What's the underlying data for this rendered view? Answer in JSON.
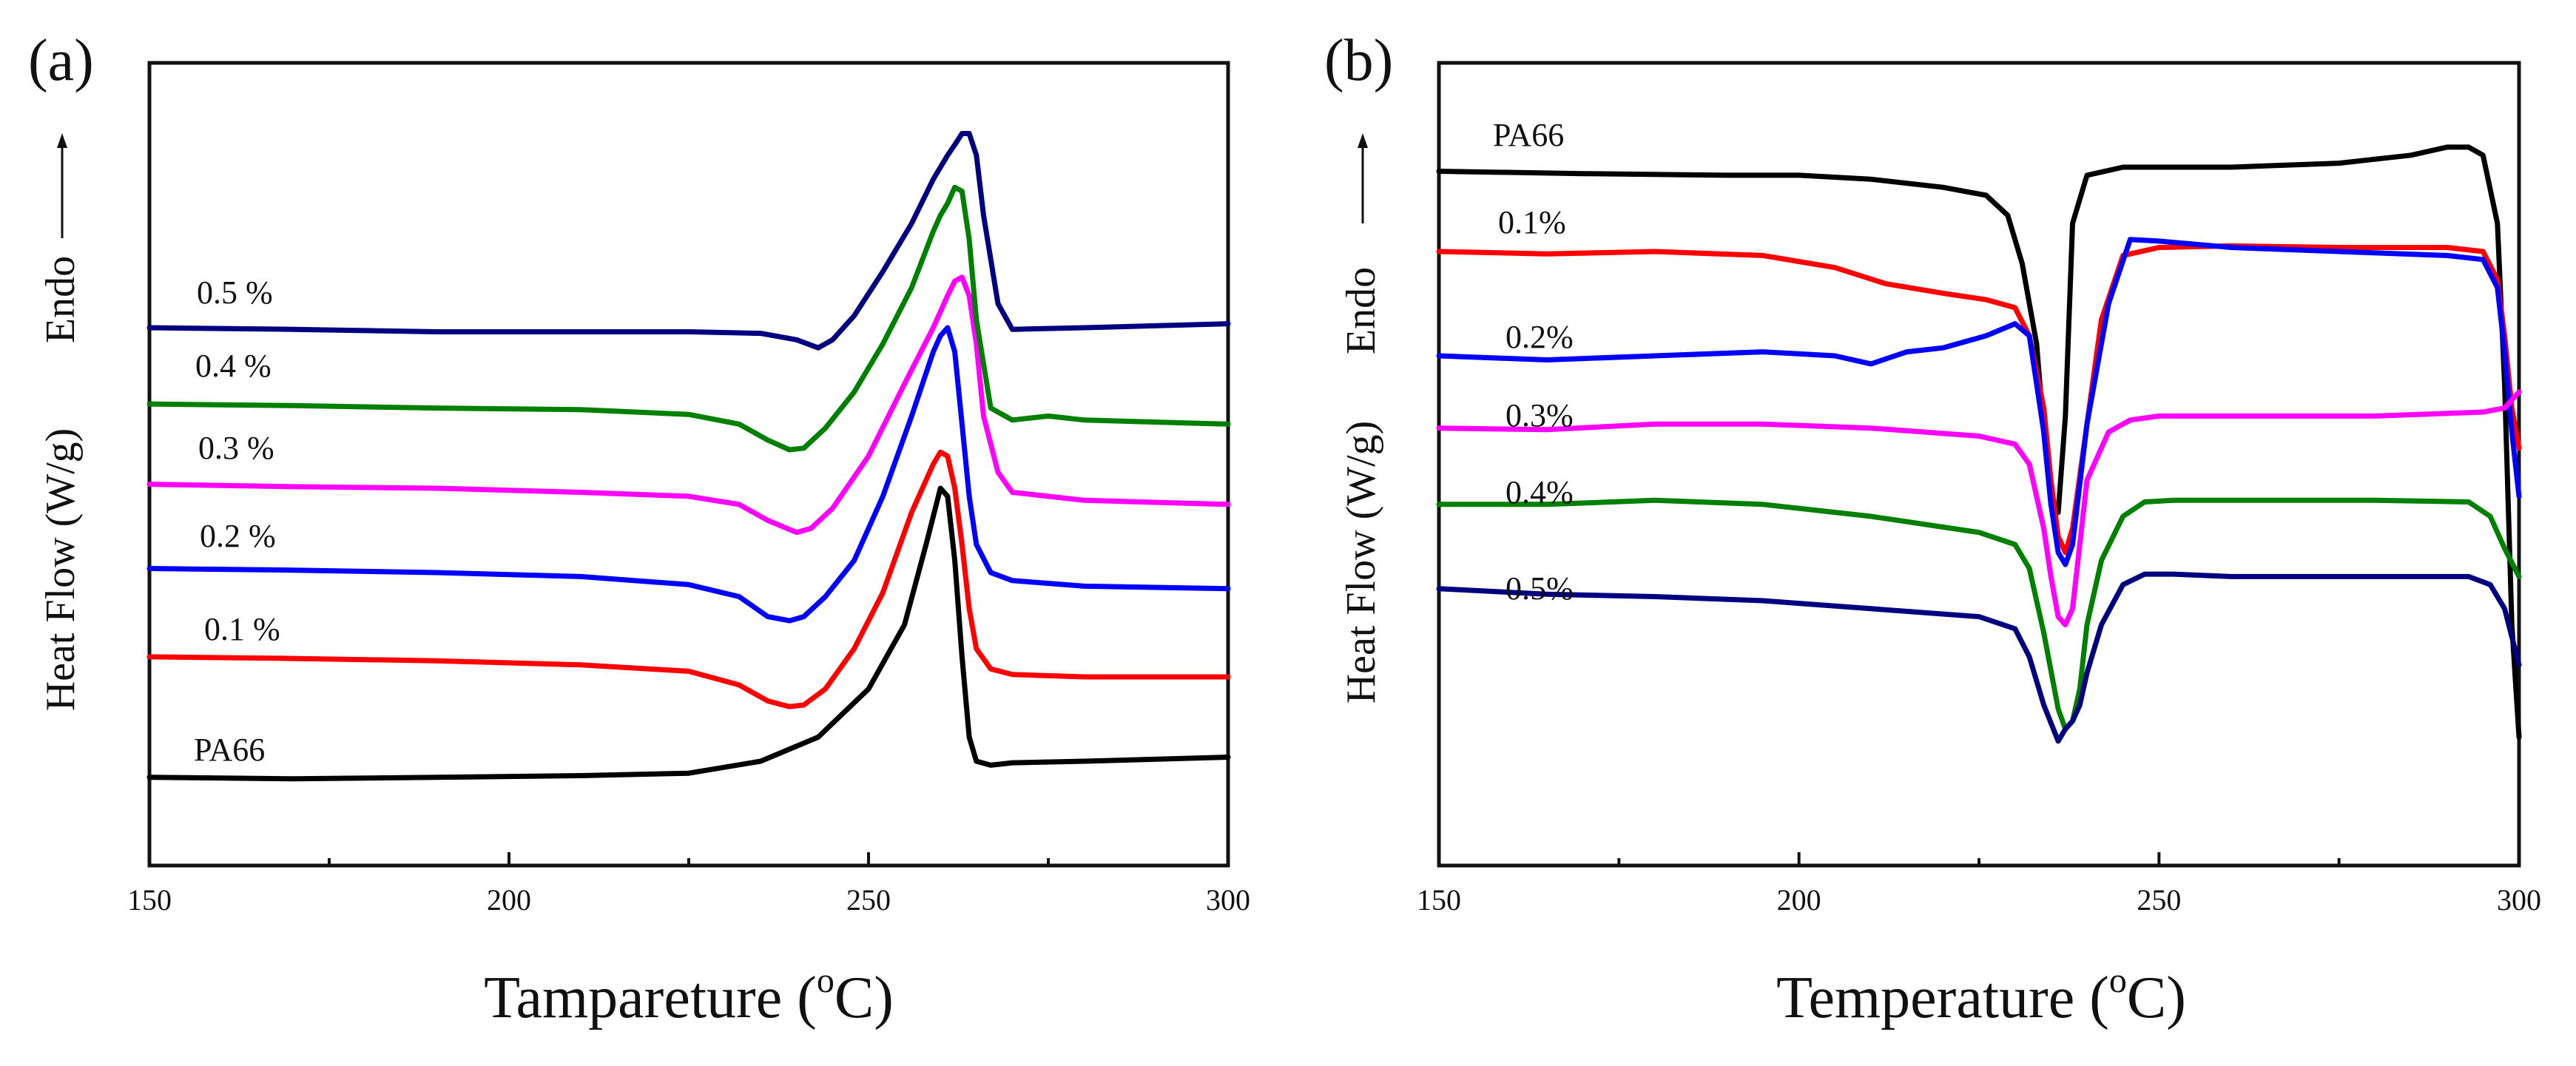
{
  "chart_data": [
    {
      "panel_label": "(a)",
      "type": "line",
      "xlabel_main": "Tampareture (",
      "xlabel_super": "o",
      "xlabel_end": "C)",
      "ylabel_main": "Heat Flow (W/g)",
      "ylabel_endo": "Endo",
      "xlim": [
        150,
        300
      ],
      "ylim": [
        0,
        100
      ],
      "grid": false,
      "xticks": [
        150,
        200,
        250,
        300
      ],
      "xtick_labels": [
        "150",
        "200",
        "250",
        "300"
      ],
      "series": [
        {
          "name": "PA66",
          "color": "#000000",
          "x": [
            150,
            170,
            190,
            210,
            225,
            235,
            243,
            250,
            255,
            258,
            260,
            261,
            262,
            263,
            264,
            265,
            267,
            270,
            280,
            300
          ],
          "y": [
            11,
            10.8,
            11,
            11.2,
            11.5,
            13,
            16,
            22,
            30,
            40,
            47,
            46,
            38,
            26,
            16,
            13,
            12.5,
            12.8,
            13,
            13.5
          ]
        },
        {
          "name": "0.1 %",
          "color": "#ff0000",
          "x": [
            150,
            170,
            190,
            210,
            225,
            232,
            236,
            239,
            241,
            244,
            248,
            252,
            256,
            259,
            260,
            261,
            262,
            263,
            264,
            265,
            267,
            270,
            280,
            300
          ],
          "y": [
            26,
            25.8,
            25.5,
            25,
            24.2,
            22.5,
            20.5,
            19.8,
            20,
            22,
            27,
            34,
            44,
            50,
            51.5,
            51,
            47,
            40,
            32,
            27,
            24.5,
            23.8,
            23.5,
            23.5
          ]
        },
        {
          "name": "0.2 %",
          "color": "#0000ff",
          "x": [
            150,
            170,
            190,
            210,
            225,
            232,
            236,
            239,
            241,
            244,
            248,
            252,
            256,
            259,
            260,
            261,
            262,
            263,
            264,
            265,
            267,
            270,
            280,
            300
          ],
          "y": [
            37,
            36.8,
            36.5,
            36,
            35,
            33.5,
            31,
            30.5,
            31,
            33.5,
            38,
            46,
            56,
            64,
            66,
            67,
            64,
            55,
            46,
            40,
            36.5,
            35.5,
            34.8,
            34.5
          ]
        },
        {
          "name": "0.3 %",
          "color": "#ff00ff",
          "x": [
            150,
            170,
            190,
            210,
            225,
            232,
            236,
            240,
            242,
            245,
            250,
            255,
            259,
            261,
            262,
            263,
            264,
            265,
            266,
            268,
            270,
            280,
            300
          ],
          "y": [
            47.5,
            47.2,
            47,
            46.5,
            46,
            45,
            43,
            41.5,
            42,
            44.5,
            51,
            60,
            67,
            71,
            72.8,
            73.3,
            71,
            65,
            56,
            49,
            46.5,
            45.5,
            45
          ]
        },
        {
          "name": "0.4 %",
          "color": "#008000",
          "x": [
            150,
            170,
            190,
            210,
            225,
            232,
            236,
            239,
            241,
            244,
            248,
            252,
            256,
            259,
            260,
            261,
            262,
            263,
            264,
            265,
            267,
            270,
            275,
            280,
            300
          ],
          "y": [
            57.5,
            57.3,
            57,
            56.8,
            56.2,
            55,
            53,
            51.8,
            52,
            54.5,
            59,
            65,
            72,
            79,
            81,
            82.5,
            84.5,
            84,
            78,
            68,
            57,
            55.5,
            56,
            55.5,
            55
          ]
        },
        {
          "name": "0.5 %",
          "color": "#000080",
          "x": [
            150,
            170,
            190,
            210,
            225,
            235,
            240,
            243,
            245,
            248,
            252,
            256,
            259,
            261,
            262,
            263,
            264,
            265,
            266,
            268,
            270,
            280,
            300
          ],
          "y": [
            67,
            66.8,
            66.5,
            66.5,
            66.5,
            66.3,
            65.5,
            64.5,
            65.5,
            68.5,
            74,
            80,
            85.5,
            88.5,
            89.8,
            91.2,
            91.2,
            88.5,
            81,
            70,
            66.8,
            67,
            67.5
          ]
        }
      ],
      "series_labels": [
        "PA66",
        "0.1 %",
        "0.2 %",
        "0.3 %",
        "0.4 %",
        "0.5 %"
      ]
    },
    {
      "panel_label": "(b)",
      "type": "line",
      "xlabel_main": "Temperature (",
      "xlabel_super": "o",
      "xlabel_end": "C)",
      "ylabel_main": "Heat Flow (W/g)",
      "ylabel_endo": "Endo",
      "xlim": [
        150,
        300
      ],
      "ylim": [
        0,
        100
      ],
      "grid": false,
      "xticks": [
        150,
        200,
        250,
        300
      ],
      "xtick_labels": [
        "150",
        "200",
        "250",
        "300"
      ],
      "series": [
        {
          "name": "PA66",
          "color": "#000000",
          "x": [
            150,
            170,
            190,
            200,
            210,
            220,
            226,
            229,
            231,
            233,
            234,
            235,
            236,
            237,
            238,
            240,
            245,
            260,
            275,
            285,
            290,
            293,
            295,
            297,
            298,
            299,
            300
          ],
          "y": [
            86.5,
            86.2,
            86,
            86,
            85.5,
            84.5,
            83.5,
            81,
            75,
            65,
            54,
            45,
            44,
            56,
            80,
            86,
            87,
            87,
            87.5,
            88.5,
            89.5,
            89.5,
            88.5,
            80,
            60,
            30,
            16
          ]
        },
        {
          "name": "0.1%",
          "color": "#ff0000",
          "x": [
            150,
            165,
            180,
            195,
            205,
            212,
            220,
            226,
            230,
            232,
            234,
            235,
            236,
            237,
            238,
            240,
            242,
            245,
            250,
            260,
            275,
            290,
            295,
            297,
            298,
            299,
            300
          ],
          "y": [
            76.5,
            76.2,
            76.5,
            76,
            74.5,
            72.5,
            71.3,
            70.5,
            69.5,
            66,
            57,
            48,
            41,
            39,
            42,
            55,
            68,
            76,
            77,
            77.2,
            77,
            77,
            76.5,
            73,
            66,
            57,
            52
          ]
        },
        {
          "name": "0.2%",
          "color": "#0000ff",
          "x": [
            150,
            165,
            180,
            195,
            205,
            210,
            215,
            220,
            226,
            230,
            232,
            233,
            234,
            235,
            236,
            237,
            238,
            240,
            243,
            246,
            250,
            260,
            275,
            290,
            295,
            297,
            298,
            299,
            300
          ],
          "y": [
            63.5,
            63,
            63.5,
            64,
            63.5,
            62.5,
            64,
            64.5,
            66,
            67.5,
            66,
            60,
            54,
            45,
            39,
            37.5,
            40,
            55,
            70,
            78,
            77.8,
            77,
            76.5,
            76,
            75.5,
            72,
            64,
            54,
            46
          ]
        },
        {
          "name": "0.3%",
          "color": "#ff00ff",
          "x": [
            150,
            165,
            180,
            195,
            210,
            225,
            230,
            232,
            234,
            235,
            236,
            237,
            238,
            239,
            240,
            243,
            246,
            250,
            260,
            280,
            295,
            298,
            300
          ],
          "y": [
            54.5,
            54.3,
            55,
            55,
            54.5,
            53.5,
            52.5,
            50,
            42,
            36,
            31,
            30,
            32,
            40,
            48,
            54,
            55.5,
            56,
            56,
            56,
            56.5,
            57,
            59
          ]
        },
        {
          "name": "0.4%",
          "color": "#008000",
          "x": [
            150,
            165,
            180,
            195,
            210,
            225,
            230,
            232,
            234,
            236,
            237,
            238,
            239,
            240,
            242,
            245,
            248,
            252,
            260,
            280,
            293,
            296,
            298,
            300
          ],
          "y": [
            45,
            45,
            45.5,
            45,
            43.5,
            41.5,
            40,
            37,
            29,
            19.5,
            17,
            18,
            22,
            30,
            38,
            43.5,
            45.3,
            45.5,
            45.5,
            45.5,
            45.3,
            43.5,
            39.5,
            36
          ]
        },
        {
          "name": "0.5%",
          "color": "#000080",
          "x": [
            150,
            165,
            180,
            195,
            210,
            225,
            230,
            232,
            234,
            236,
            237,
            238,
            239,
            240,
            242,
            245,
            248,
            252,
            260,
            280,
            293,
            296,
            298,
            300
          ],
          "y": [
            34.5,
            33.8,
            33.5,
            33,
            32,
            31,
            29.5,
            26,
            20,
            15.5,
            17,
            18,
            20,
            24,
            30,
            35,
            36.3,
            36.3,
            36,
            36,
            36,
            35,
            32,
            25
          ]
        }
      ],
      "series_labels": [
        "PA66",
        "0.1%",
        "0.2%",
        "0.3%",
        "0.4%",
        "0.5%"
      ]
    }
  ]
}
